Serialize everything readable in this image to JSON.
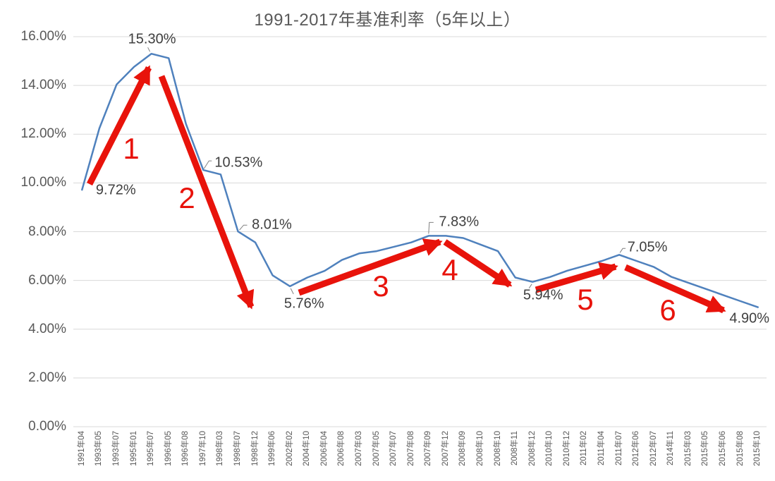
{
  "colors": {
    "line": "#4F81BD",
    "arrow": "#E8130B",
    "grid": "#D9D9D9",
    "leader": "#808080",
    "title_text": "#595959",
    "axis_text": "#595959",
    "data_label_text": "#3F3F3F"
  },
  "chart_data": {
    "type": "line",
    "title": "1991-2017年基准利率（5年以上）",
    "xlabel": "",
    "ylabel": "",
    "ylim": [
      0,
      16
    ],
    "grid": true,
    "legend": "none",
    "y_tick_labels": [
      "0.00%",
      "2.00%",
      "4.00%",
      "6.00%",
      "8.00%",
      "10.00%",
      "12.00%",
      "14.00%",
      "16.00%"
    ],
    "categories": [
      "1991年04",
      "1993年05",
      "1993年07",
      "1995年01",
      "1995年07",
      "1996年05",
      "1996年08",
      "1997年10",
      "1998年03",
      "1998年07",
      "1998年12",
      "1999年06",
      "2002年02",
      "2004年10",
      "2006年04",
      "2006年08",
      "2007年03",
      "2007年05",
      "2007年07",
      "2007年08",
      "2007年09",
      "2007年12",
      "2008年09",
      "2008年10",
      "2008年10",
      "2008年11",
      "2008年12",
      "2010年10",
      "2010年12",
      "2011年02",
      "2011年04",
      "2011年07",
      "2012年06",
      "2012年07",
      "2014年11",
      "2015年03",
      "2015年05",
      "2015年06",
      "2015年08",
      "2015年10"
    ],
    "values": [
      9.72,
      12.24,
      14.04,
      14.76,
      15.3,
      15.12,
      12.42,
      10.53,
      10.35,
      8.01,
      7.56,
      6.21,
      5.76,
      6.12,
      6.39,
      6.84,
      7.11,
      7.2,
      7.38,
      7.56,
      7.83,
      7.83,
      7.74,
      7.47,
      7.2,
      6.12,
      5.94,
      6.14,
      6.4,
      6.6,
      6.8,
      7.05,
      6.8,
      6.55,
      6.15,
      5.9,
      5.65,
      5.4,
      5.15,
      4.9
    ],
    "data_labels": [
      {
        "text": "9.72%",
        "index": 0
      },
      {
        "text": "15.30%",
        "index": 4
      },
      {
        "text": "10.53%",
        "index": 7
      },
      {
        "text": "8.01%",
        "index": 9
      },
      {
        "text": "5.76%",
        "index": 12
      },
      {
        "text": "7.83%",
        "index": 20
      },
      {
        "text": "5.94%",
        "index": 26
      },
      {
        "text": "7.05%",
        "index": 31
      },
      {
        "text": "4.90%",
        "index": 39
      }
    ],
    "annotations": [
      "1",
      "2",
      "3",
      "4",
      "5",
      "6"
    ]
  }
}
